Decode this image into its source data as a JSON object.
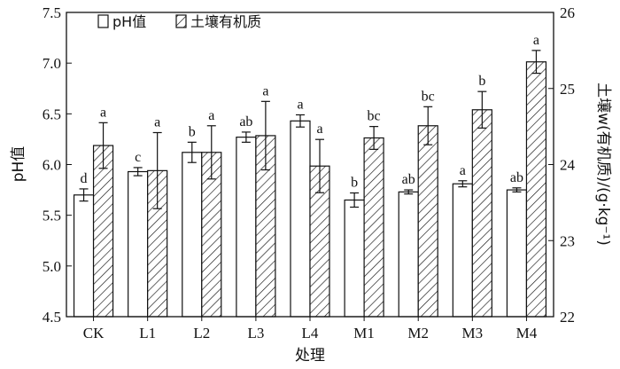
{
  "chart_data": {
    "type": "bar",
    "xlabel": "处理",
    "ylabel_left": "pH值",
    "ylabel_right": "土壤w(有机质)/(g·kg⁻¹)",
    "ylim_left": [
      4.5,
      7.5
    ],
    "yticks_left": [
      4.5,
      5.0,
      5.5,
      6.0,
      6.5,
      7.0,
      7.5
    ],
    "ylim_right": [
      22,
      26
    ],
    "yticks_right": [
      22,
      23,
      24,
      25,
      26
    ],
    "legend_position": "top-left",
    "grid": false,
    "categories": [
      "CK",
      "L1",
      "L2",
      "L3",
      "L4",
      "M1",
      "M2",
      "M3",
      "M4"
    ],
    "series": [
      {
        "name": "pH值",
        "axis": "left",
        "pattern": "open",
        "values": [
          5.7,
          5.93,
          6.12,
          6.27,
          6.43,
          5.65,
          5.73,
          5.81,
          5.75
        ],
        "errors": [
          0.06,
          0.04,
          0.1,
          0.05,
          0.06,
          0.07,
          0.02,
          0.03,
          0.02
        ],
        "labels": [
          "d",
          "c",
          "b",
          "ab",
          "a",
          "b",
          "ab",
          "a",
          "ab"
        ]
      },
      {
        "name": "土壤有机质",
        "axis": "right",
        "pattern": "hatched",
        "values": [
          24.25,
          23.92,
          24.16,
          24.38,
          23.98,
          24.35,
          24.51,
          24.72,
          25.35
        ],
        "errors": [
          0.3,
          0.5,
          0.35,
          0.45,
          0.35,
          0.15,
          0.25,
          0.24,
          0.15
        ],
        "labels": [
          "a",
          "a",
          "a",
          "a",
          "a",
          "bc",
          "bc",
          "b",
          "a"
        ]
      }
    ],
    "colors": {
      "axis": "#111111",
      "bar_fill": "#ffffff",
      "bar_stroke": "#111111",
      "hatch": "#111111"
    }
  }
}
